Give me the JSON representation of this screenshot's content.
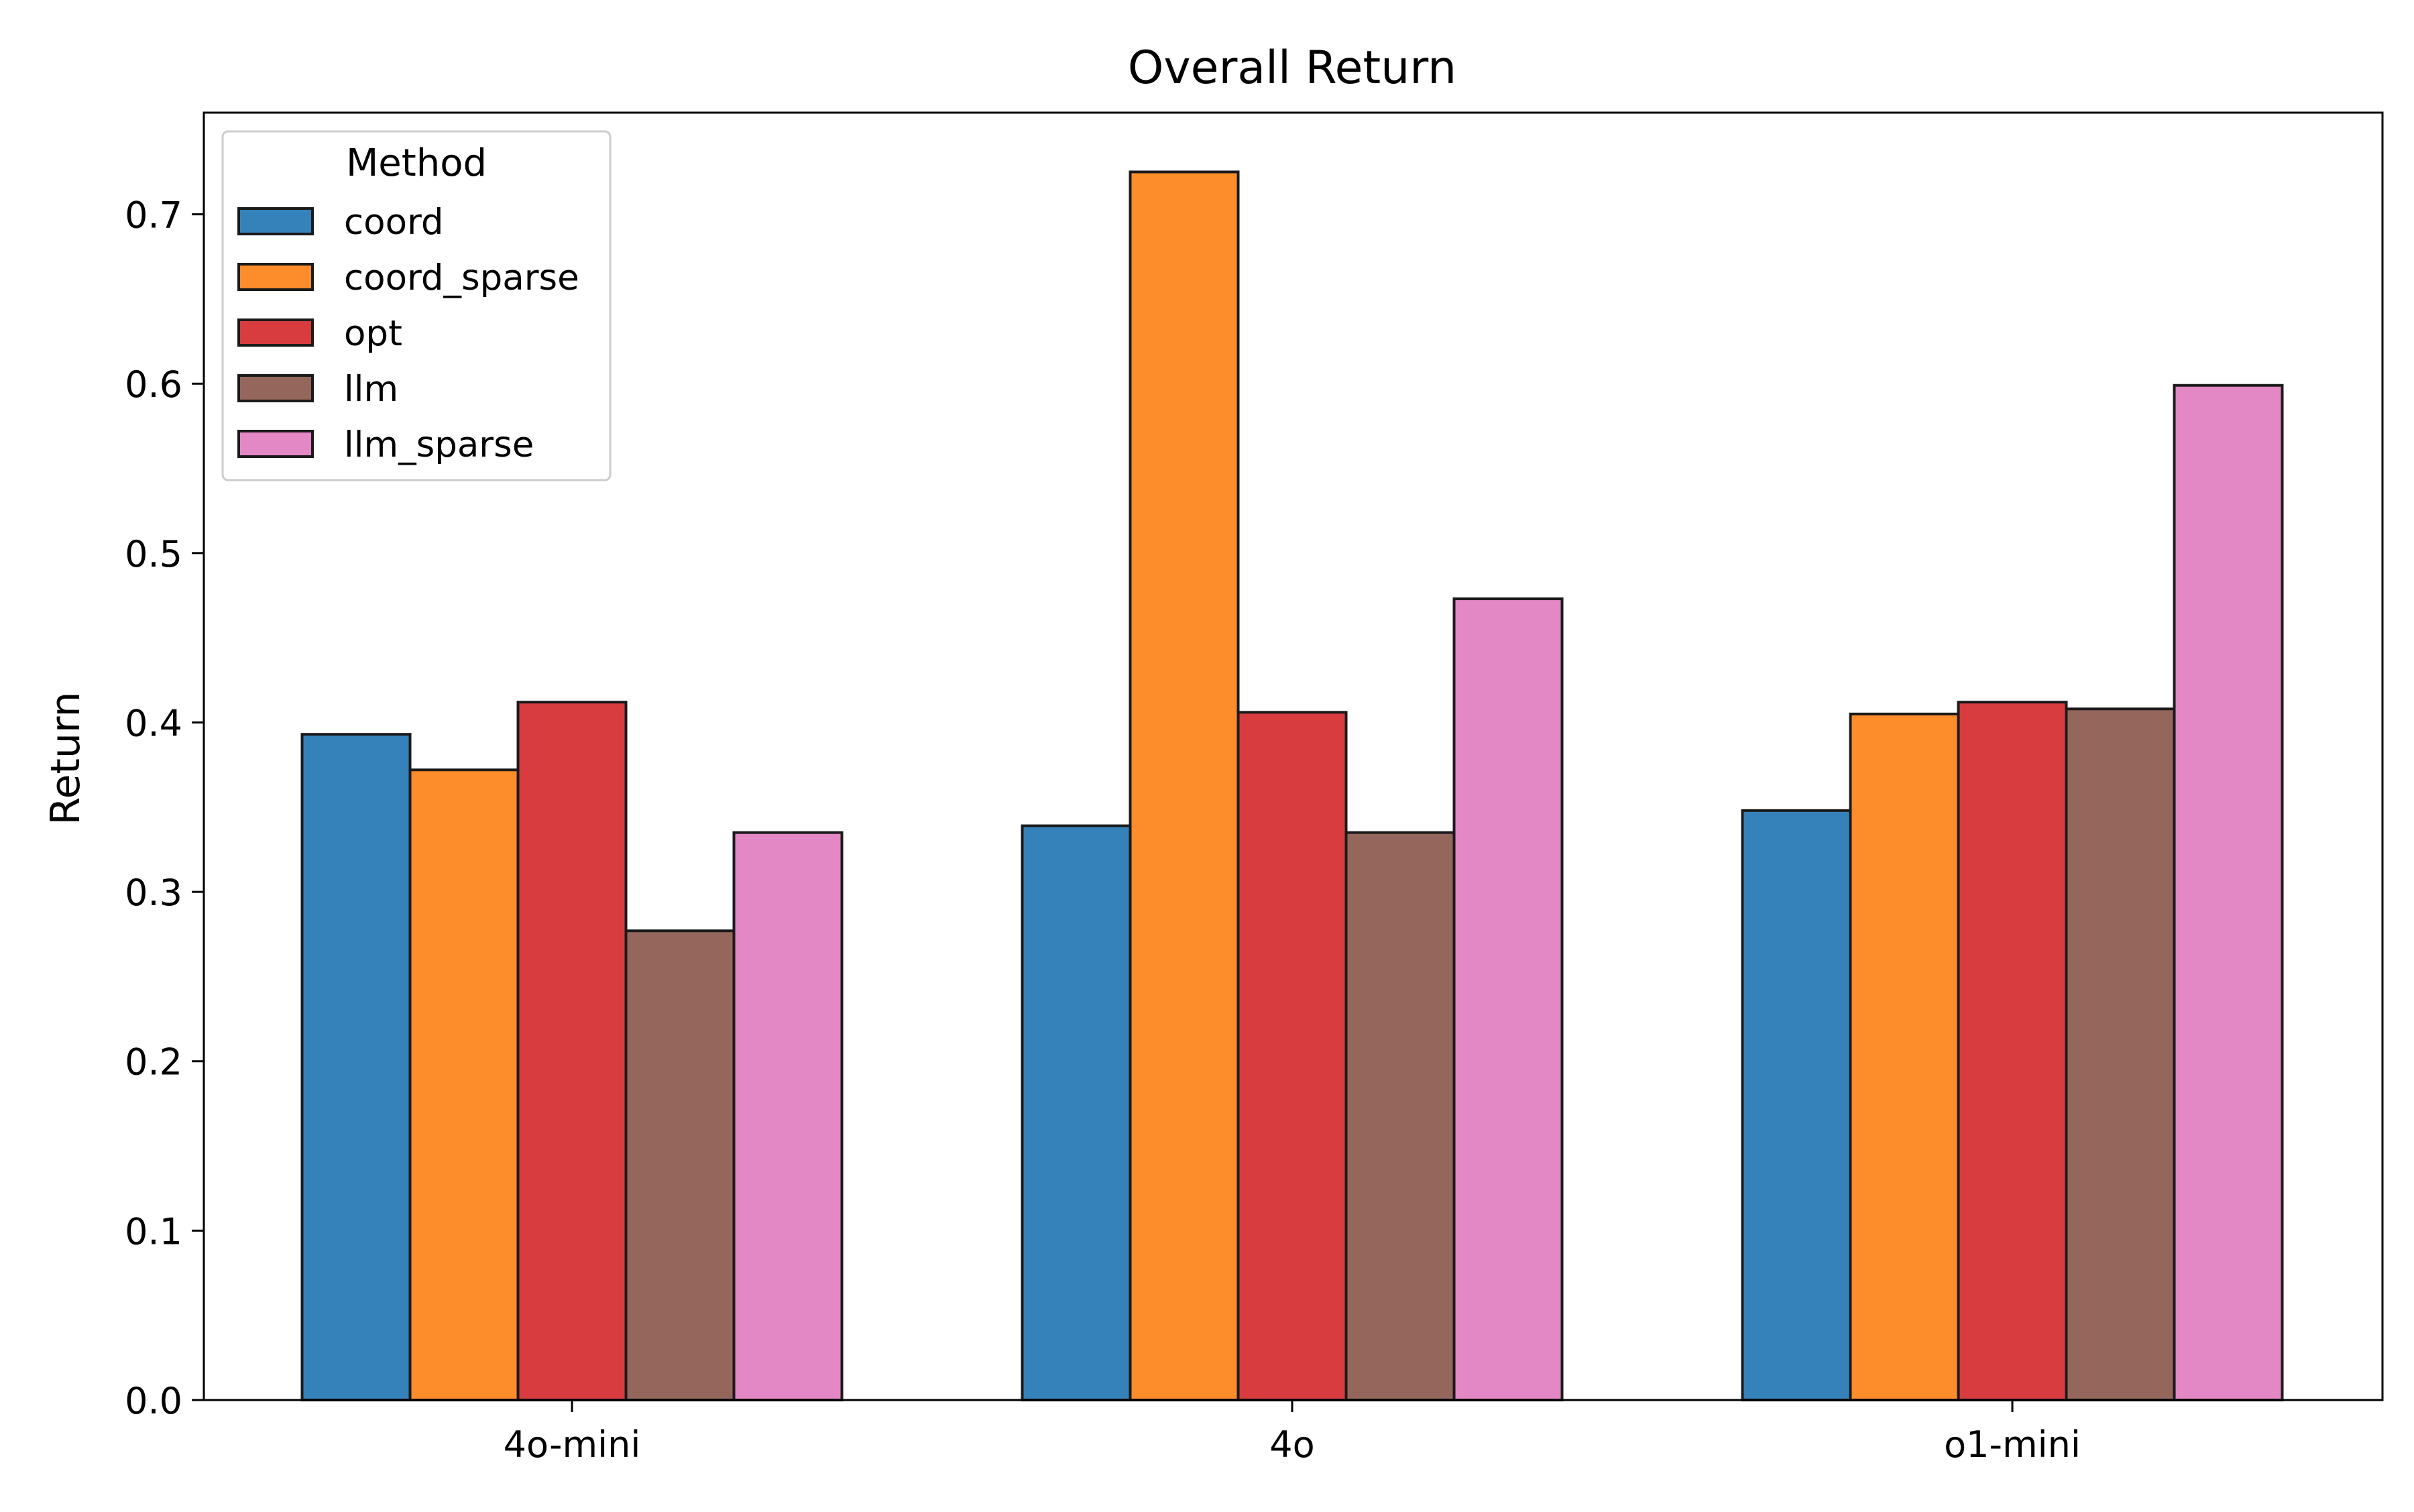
{
  "chart_data": {
    "type": "bar",
    "title": "Overall Return",
    "xlabel": "",
    "ylabel": "Return",
    "categories": [
      "4o-mini",
      "4o",
      "o1-mini"
    ],
    "ylim": [
      0,
      0.76
    ],
    "yticks": [
      "0.0",
      "0.1",
      "0.2",
      "0.3",
      "0.4",
      "0.5",
      "0.6",
      "0.7"
    ],
    "grid": false,
    "legend": {
      "title": "Method",
      "placement": "top-left"
    },
    "series": [
      {
        "name": "coord",
        "color": "#3582ba",
        "values": [
          0.393,
          0.339,
          0.348
        ]
      },
      {
        "name": "coord_sparse",
        "color": "#fd8c2a",
        "values": [
          0.372,
          0.725,
          0.405
        ]
      },
      {
        "name": "opt",
        "color": "#d93c3e",
        "values": [
          0.412,
          0.406,
          0.412
        ]
      },
      {
        "name": "llm",
        "color": "#95675c",
        "values": [
          0.277,
          0.335,
          0.408
        ]
      },
      {
        "name": "llm_sparse",
        "color": "#e487c5",
        "values": [
          0.335,
          0.473,
          0.599
        ]
      }
    ]
  }
}
